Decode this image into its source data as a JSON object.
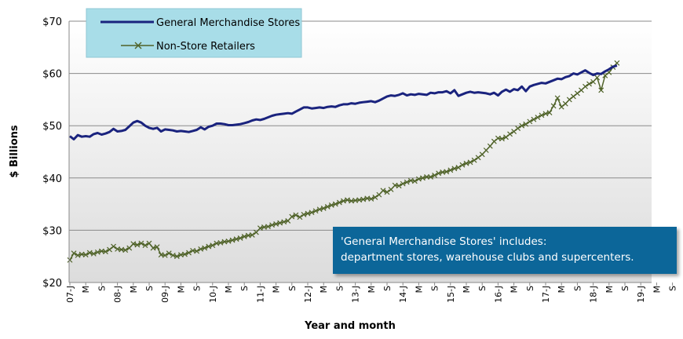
{
  "chart_data": {
    "type": "line",
    "ylabel": "$ Billions",
    "xlabel": "Year and month",
    "ylim": [
      20,
      70
    ],
    "y_ticks": [
      "$20",
      "$30",
      "$40",
      "$50",
      "$60",
      "$70"
    ],
    "y_tick_values": [
      20,
      30,
      40,
      50,
      60,
      70
    ],
    "x_tick_labels": [
      "07-J",
      "M",
      "S",
      "08-J",
      "M",
      "S",
      "09-J",
      "M",
      "S",
      "10-J",
      "M",
      "S",
      "11-J",
      "M",
      "S",
      "12-J",
      "M",
      "S",
      "13-J",
      "M",
      "S",
      "14-J",
      "M",
      "S",
      "15-J",
      "M",
      "S",
      "16-J",
      "M",
      "S",
      "17-J",
      "M",
      "S",
      "18-J",
      "M",
      "S",
      "19-J",
      "M",
      "S"
    ],
    "x_start": "2007-01",
    "grid": "horizontal",
    "legend_position": "top-left",
    "series": [
      {
        "name": "General Merchandise Stores",
        "color": "#1a237e",
        "marker": "none",
        "values": [
          48.0,
          47.4,
          48.2,
          47.9,
          48.0,
          47.9,
          48.4,
          48.6,
          48.3,
          48.5,
          48.8,
          49.4,
          48.9,
          49.0,
          49.2,
          49.9,
          50.6,
          50.9,
          50.6,
          50.0,
          49.6,
          49.4,
          49.6,
          48.9,
          49.3,
          49.2,
          49.1,
          48.9,
          49.0,
          48.9,
          48.8,
          49.0,
          49.2,
          49.7,
          49.3,
          49.8,
          50.0,
          50.4,
          50.4,
          50.3,
          50.1,
          50.1,
          50.2,
          50.3,
          50.5,
          50.7,
          51.0,
          51.2,
          51.1,
          51.3,
          51.6,
          51.9,
          52.1,
          52.2,
          52.3,
          52.4,
          52.3,
          52.7,
          53.1,
          53.5,
          53.5,
          53.3,
          53.4,
          53.5,
          53.4,
          53.6,
          53.7,
          53.6,
          53.9,
          54.1,
          54.1,
          54.3,
          54.2,
          54.4,
          54.5,
          54.6,
          54.7,
          54.5,
          54.8,
          55.2,
          55.6,
          55.8,
          55.7,
          55.9,
          56.2,
          55.8,
          56.0,
          55.9,
          56.1,
          56.0,
          55.9,
          56.3,
          56.2,
          56.4,
          56.4,
          56.6,
          56.2,
          56.8,
          55.7,
          56.0,
          56.3,
          56.5,
          56.3,
          56.4,
          56.3,
          56.2,
          56.0,
          56.3,
          55.8,
          56.5,
          56.9,
          56.5,
          57.0,
          56.8,
          57.5,
          56.6,
          57.5,
          57.8,
          58.0,
          58.2,
          58.1,
          58.4,
          58.7,
          59.0,
          58.9,
          59.3,
          59.5,
          60.0,
          59.8,
          60.2,
          60.6,
          60.1,
          59.7,
          60.0,
          59.9,
          60.4,
          60.8,
          61.3,
          61.5
        ]
      },
      {
        "name": "Non-Store Retailers",
        "color": "#4f6228",
        "marker": "x",
        "values": [
          24.3,
          25.6,
          25.2,
          25.4,
          25.3,
          25.7,
          25.5,
          25.8,
          26.0,
          25.9,
          26.3,
          26.9,
          26.4,
          26.3,
          26.2,
          26.6,
          27.4,
          27.2,
          27.5,
          27.1,
          27.5,
          26.6,
          26.8,
          25.3,
          25.2,
          25.6,
          25.2,
          25.0,
          25.3,
          25.4,
          25.7,
          26.1,
          26.0,
          26.4,
          26.6,
          26.9,
          27.1,
          27.5,
          27.6,
          27.8,
          27.9,
          28.1,
          28.3,
          28.5,
          28.8,
          29.0,
          29.1,
          29.6,
          30.4,
          30.6,
          30.7,
          31.0,
          31.2,
          31.4,
          31.6,
          31.8,
          32.6,
          32.9,
          32.5,
          33.0,
          33.2,
          33.4,
          33.7,
          34.0,
          34.2,
          34.5,
          34.8,
          35.0,
          35.3,
          35.6,
          35.8,
          35.6,
          35.7,
          35.8,
          35.9,
          36.1,
          36.0,
          36.3,
          36.8,
          37.6,
          37.3,
          37.8,
          38.6,
          38.5,
          38.9,
          39.2,
          39.5,
          39.4,
          39.8,
          40.0,
          40.2,
          40.2,
          40.5,
          40.9,
          41.1,
          41.2,
          41.5,
          41.8,
          42.0,
          42.5,
          42.8,
          43.0,
          43.4,
          43.9,
          44.5,
          45.3,
          46.1,
          47.0,
          47.6,
          47.5,
          47.8,
          48.4,
          48.9,
          49.5,
          50.0,
          50.3,
          50.8,
          51.2,
          51.6,
          52.0,
          52.3,
          52.5,
          53.8,
          55.3,
          53.6,
          54.2,
          55.0,
          55.6,
          56.2,
          56.8,
          57.5,
          58.0,
          58.4,
          59.2,
          56.8,
          59.6,
          60.2,
          61.2,
          62.0
        ]
      }
    ],
    "annotation": [
      "'General Merchandise Stores' includes:",
      "department stores, warehouse clubs and supercenters."
    ]
  }
}
